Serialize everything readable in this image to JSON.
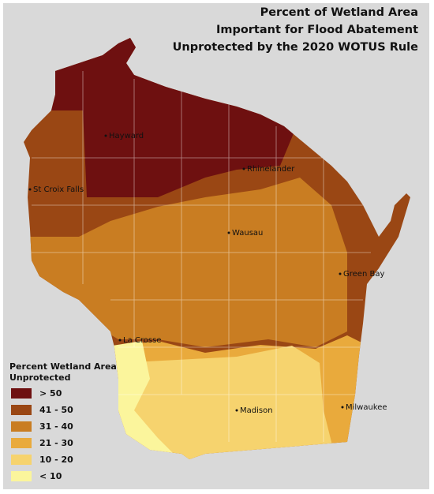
{
  "title": [
    "Percent of Wetland Area",
    "Important for Flood Abatement",
    "Unprotected by the 2020 WOTUS Rule"
  ],
  "legend": {
    "title": [
      "Percent Wetland Area",
      "Unprotected"
    ],
    "items": [
      {
        "label": "> 50",
        "color": "#6e1010"
      },
      {
        "label": "41 - 50",
        "color": "#9a4714"
      },
      {
        "label": "31 - 40",
        "color": "#c97d22"
      },
      {
        "label": "21 - 30",
        "color": "#e9aa3c"
      },
      {
        "label": "10 - 20",
        "color": "#f6d36e"
      },
      {
        "label": "< 10",
        "color": "#fbf59c"
      }
    ]
  },
  "cities": [
    "Hayward",
    "Rhinelander",
    "St Croix Falls",
    "Wausau",
    "Green Bay",
    "La Crosse",
    "Madison",
    "Milwaukee"
  ]
}
